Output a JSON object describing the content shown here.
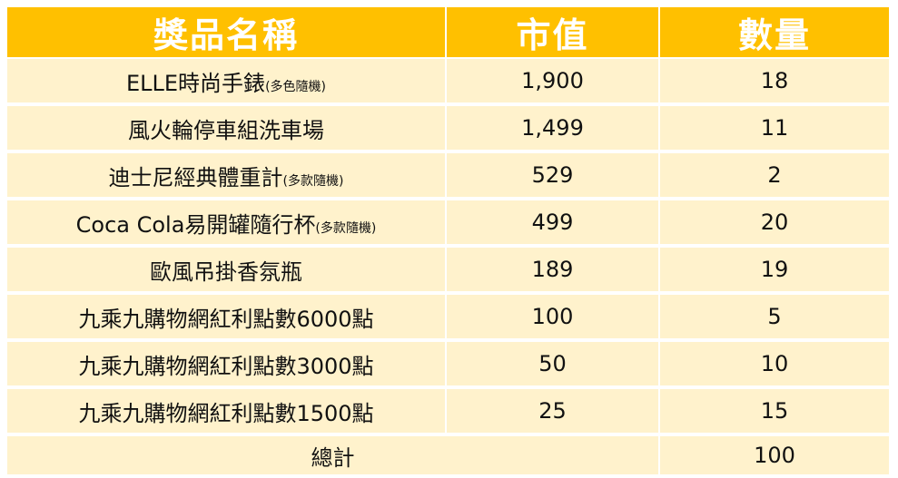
{
  "table": {
    "headers": [
      "獎品名稱",
      "市值",
      "數量"
    ],
    "colors": {
      "header_bg": "#FFC000",
      "header_text": "#ffffff",
      "row_bg": "#FFF2CC",
      "text": "#111111"
    },
    "rows": [
      {
        "name": "ELLE時尚手錶",
        "note": "(多色隨機)",
        "value": "1,900",
        "qty": "18"
      },
      {
        "name": "風火輪停車組洗車場",
        "note": "",
        "value": "1,499",
        "qty": "11"
      },
      {
        "name": "迪士尼經典體重計",
        "note": "(多款隨機)",
        "value": "529",
        "qty": "2"
      },
      {
        "name": "Coca Cola易開罐隨行杯",
        "note": "(多款隨機)",
        "value": "499",
        "qty": "20"
      },
      {
        "name": "歐風吊掛香氛瓶",
        "note": "",
        "value": "189",
        "qty": "19"
      },
      {
        "name": "九乘九購物網紅利點數6000點",
        "note": "",
        "value": "100",
        "qty": "5"
      },
      {
        "name": "九乘九購物網紅利點數3000點",
        "note": "",
        "value": "50",
        "qty": "10"
      },
      {
        "name": "九乘九購物網紅利點數1500點",
        "note": "",
        "value": "25",
        "qty": "15"
      }
    ],
    "total": {
      "label": "總計",
      "value": "100"
    }
  }
}
